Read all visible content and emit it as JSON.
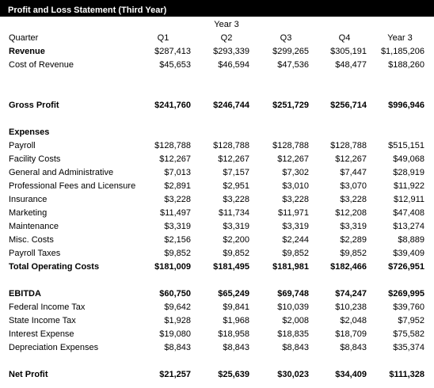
{
  "title": "Profit and Loss Statement (Third Year)",
  "year_header": "Year 3",
  "header": {
    "label": "Quarter",
    "cols": [
      "Q1",
      "Q2",
      "Q3",
      "Q4",
      "Year 3"
    ]
  },
  "revenue": {
    "label": "Revenue",
    "values": [
      "$287,413",
      "$293,339",
      "$299,265",
      "$305,191",
      "$1,185,206"
    ]
  },
  "cost_of_revenue": {
    "label": "Cost of Revenue",
    "values": [
      "$45,653",
      "$46,594",
      "$47,536",
      "$48,477",
      "$188,260"
    ]
  },
  "gross_profit": {
    "label": "Gross Profit",
    "values": [
      "$241,760",
      "$246,744",
      "$251,729",
      "$256,714",
      "$996,946"
    ]
  },
  "expenses_heading": "Expenses",
  "expenses": [
    {
      "label": "Payroll",
      "values": [
        "$128,788",
        "$128,788",
        "$128,788",
        "$128,788",
        "$515,151"
      ]
    },
    {
      "label": "Facility Costs",
      "values": [
        "$12,267",
        "$12,267",
        "$12,267",
        "$12,267",
        "$49,068"
      ]
    },
    {
      "label": "General and Administrative",
      "values": [
        "$7,013",
        "$7,157",
        "$7,302",
        "$7,447",
        "$28,919"
      ]
    },
    {
      "label": "Professional Fees and Licensure",
      "values": [
        "$2,891",
        "$2,951",
        "$3,010",
        "$3,070",
        "$11,922"
      ]
    },
    {
      "label": "Insurance",
      "values": [
        "$3,228",
        "$3,228",
        "$3,228",
        "$3,228",
        "$12,911"
      ]
    },
    {
      "label": "Marketing",
      "values": [
        "$11,497",
        "$11,734",
        "$11,971",
        "$12,208",
        "$47,408"
      ]
    },
    {
      "label": "Maintenance",
      "values": [
        "$3,319",
        "$3,319",
        "$3,319",
        "$3,319",
        "$13,274"
      ]
    },
    {
      "label": "Misc. Costs",
      "values": [
        "$2,156",
        "$2,200",
        "$2,244",
        "$2,289",
        "$8,889"
      ]
    },
    {
      "label": "Payroll Taxes",
      "values": [
        "$9,852",
        "$9,852",
        "$9,852",
        "$9,852",
        "$39,409"
      ]
    }
  ],
  "total_operating_costs": {
    "label": "Total Operating Costs",
    "values": [
      "$181,009",
      "$181,495",
      "$181,981",
      "$182,466",
      "$726,951"
    ]
  },
  "ebitda": {
    "label": "EBITDA",
    "values": [
      "$60,750",
      "$65,249",
      "$69,748",
      "$74,247",
      "$269,995"
    ]
  },
  "taxes_and_other": [
    {
      "label": "Federal Income Tax",
      "values": [
        "$9,642",
        "$9,841",
        "$10,039",
        "$10,238",
        "$39,760"
      ]
    },
    {
      "label": "State Income Tax",
      "values": [
        "$1,928",
        "$1,968",
        "$2,008",
        "$2,048",
        "$7,952"
      ]
    },
    {
      "label": "Interest Expense",
      "values": [
        "$19,080",
        "$18,958",
        "$18,835",
        "$18,709",
        "$75,582"
      ]
    },
    {
      "label": "Depreciation Expenses",
      "values": [
        "$8,843",
        "$8,843",
        "$8,843",
        "$8,843",
        "$35,374"
      ]
    }
  ],
  "net_profit": {
    "label": "Net Profit",
    "values": [
      "$21,257",
      "$25,639",
      "$30,023",
      "$34,409",
      "$111,328"
    ]
  }
}
